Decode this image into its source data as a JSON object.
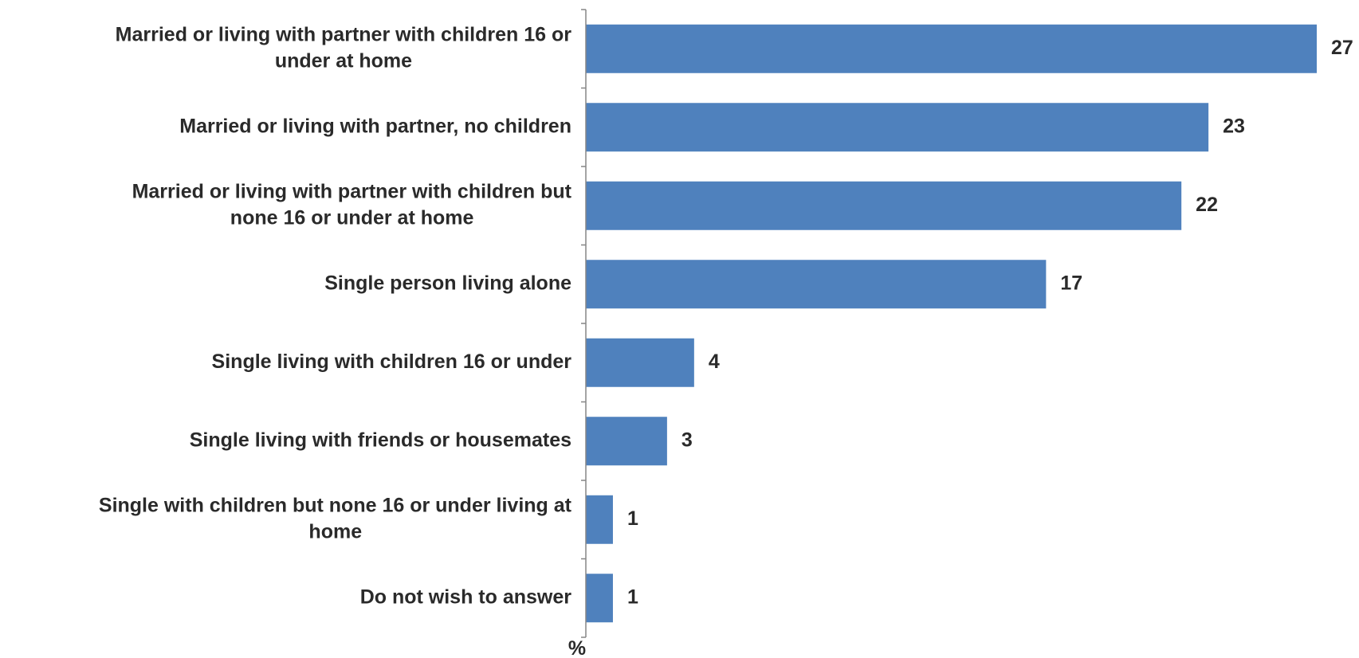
{
  "chart_data": {
    "type": "bar",
    "orientation": "horizontal",
    "categories": [
      [
        "Married or living with partner with children 16 or",
        "under at home"
      ],
      [
        "Married or living with partner, no children"
      ],
      [
        "Married or living with partner with children but",
        "none 16 or under at home"
      ],
      [
        "Single person living alone"
      ],
      [
        "Single living with children 16 or under"
      ],
      [
        "Single living with friends or housemates"
      ],
      [
        "Single with children but none 16 or under  living at",
        "home"
      ],
      [
        "Do not wish to answer"
      ]
    ],
    "values": [
      27,
      23,
      22,
      17,
      4,
      3,
      1,
      1
    ],
    "unit_label": "%",
    "xlim": [
      0,
      27
    ],
    "bar_color": "#4f81bd",
    "axis_color": "#868686",
    "grid": false,
    "legend": "none",
    "data_labels": true
  }
}
